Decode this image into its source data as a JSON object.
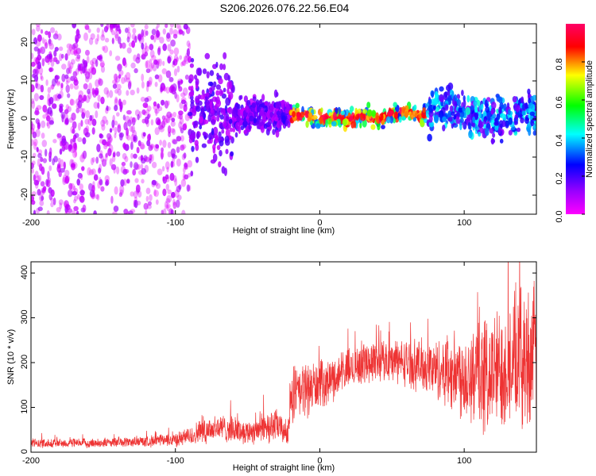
{
  "title": "S206.2026.076.22.56.E04",
  "chart_data": [
    {
      "type": "heatmap",
      "xlabel": "Height of straight line (km)",
      "ylabel": "Frequency (Hz)",
      "xlim": [
        -200,
        150
      ],
      "ylim": [
        -25,
        25
      ],
      "xticks": [
        -200,
        -100,
        0,
        100
      ],
      "xtick_labels": [
        "-200",
        "-100",
        "0",
        "100"
      ],
      "yticks": [
        -20,
        -10,
        0,
        10,
        20
      ],
      "ytick_labels": [
        "-20",
        "-10",
        "0",
        "10",
        "20"
      ],
      "grid": false,
      "colorbar": {
        "label": "Normalized spectral amplitude",
        "range": [
          0,
          1
        ],
        "ticks": [
          0,
          0.2,
          0.4,
          0.6,
          0.8
        ],
        "tick_labels": [
          "0.0",
          "0.2",
          "0.4",
          "0.6",
          "0.8"
        ],
        "colors": [
          "#ff00ff",
          "#9900ff",
          "#0000ff",
          "#00ffff",
          "#00ff00",
          "#ffff00",
          "#ff0000",
          "#ff0066"
        ]
      },
      "description_regions": [
        {
          "x_range": [
            -200,
            -90
          ],
          "y_range": [
            -25,
            25
          ],
          "amplitude": 0.08
        },
        {
          "x_range": [
            -90,
            -20
          ],
          "y_range": [
            -8,
            8
          ],
          "amplitude": 0.15
        },
        {
          "x_range": [
            -20,
            75
          ],
          "y_range": [
            -2,
            3
          ],
          "amplitude": 0.6
        },
        {
          "x_range": [
            75,
            150
          ],
          "y_range": [
            -6,
            8
          ],
          "amplitude": 0.3
        }
      ],
      "ridge": {
        "x": [
          -20,
          -10,
          0,
          10,
          20,
          30,
          40,
          50,
          60,
          70,
          80,
          90,
          100,
          110,
          120,
          130,
          140,
          150
        ],
        "y": [
          1,
          1,
          0,
          0.5,
          0,
          1,
          0,
          1,
          2,
          0.5,
          2,
          3,
          2,
          1,
          0,
          1,
          2,
          2
        ]
      }
    },
    {
      "type": "line",
      "xlabel": "Height of straight line (km)",
      "ylabel": "SNR (10 * v/v)",
      "xlim": [
        -200,
        150
      ],
      "ylim": [
        0,
        425
      ],
      "xticks": [
        -200,
        -100,
        0,
        100
      ],
      "xtick_labels": [
        "-200",
        "-100",
        "0",
        "100"
      ],
      "yticks": [
        0,
        100,
        200,
        300,
        400
      ],
      "ytick_labels": [
        "0",
        "100",
        "200",
        "300",
        "400"
      ],
      "grid": false,
      "series": [
        {
          "name": "SNR",
          "color": "#ee3333",
          "x": [
            -200,
            -180,
            -160,
            -140,
            -120,
            -100,
            -90,
            -80,
            -70,
            -60,
            -50,
            -40,
            -30,
            -22,
            -20,
            -15,
            -10,
            0,
            10,
            20,
            30,
            40,
            50,
            60,
            70,
            80,
            90,
            100,
            110,
            120,
            130,
            140,
            150
          ],
          "mean": [
            20,
            20,
            20,
            22,
            24,
            28,
            35,
            50,
            55,
            50,
            45,
            55,
            60,
            40,
            120,
            130,
            140,
            150,
            165,
            185,
            200,
            205,
            205,
            200,
            195,
            185,
            180,
            175,
            170,
            175,
            200,
            210,
            220
          ],
          "spread": [
            10,
            10,
            10,
            10,
            12,
            15,
            20,
            30,
            30,
            28,
            25,
            35,
            35,
            25,
            60,
            60,
            60,
            50,
            45,
            45,
            45,
            45,
            45,
            50,
            55,
            65,
            80,
            100,
            120,
            130,
            140,
            150,
            150
          ]
        }
      ]
    }
  ]
}
